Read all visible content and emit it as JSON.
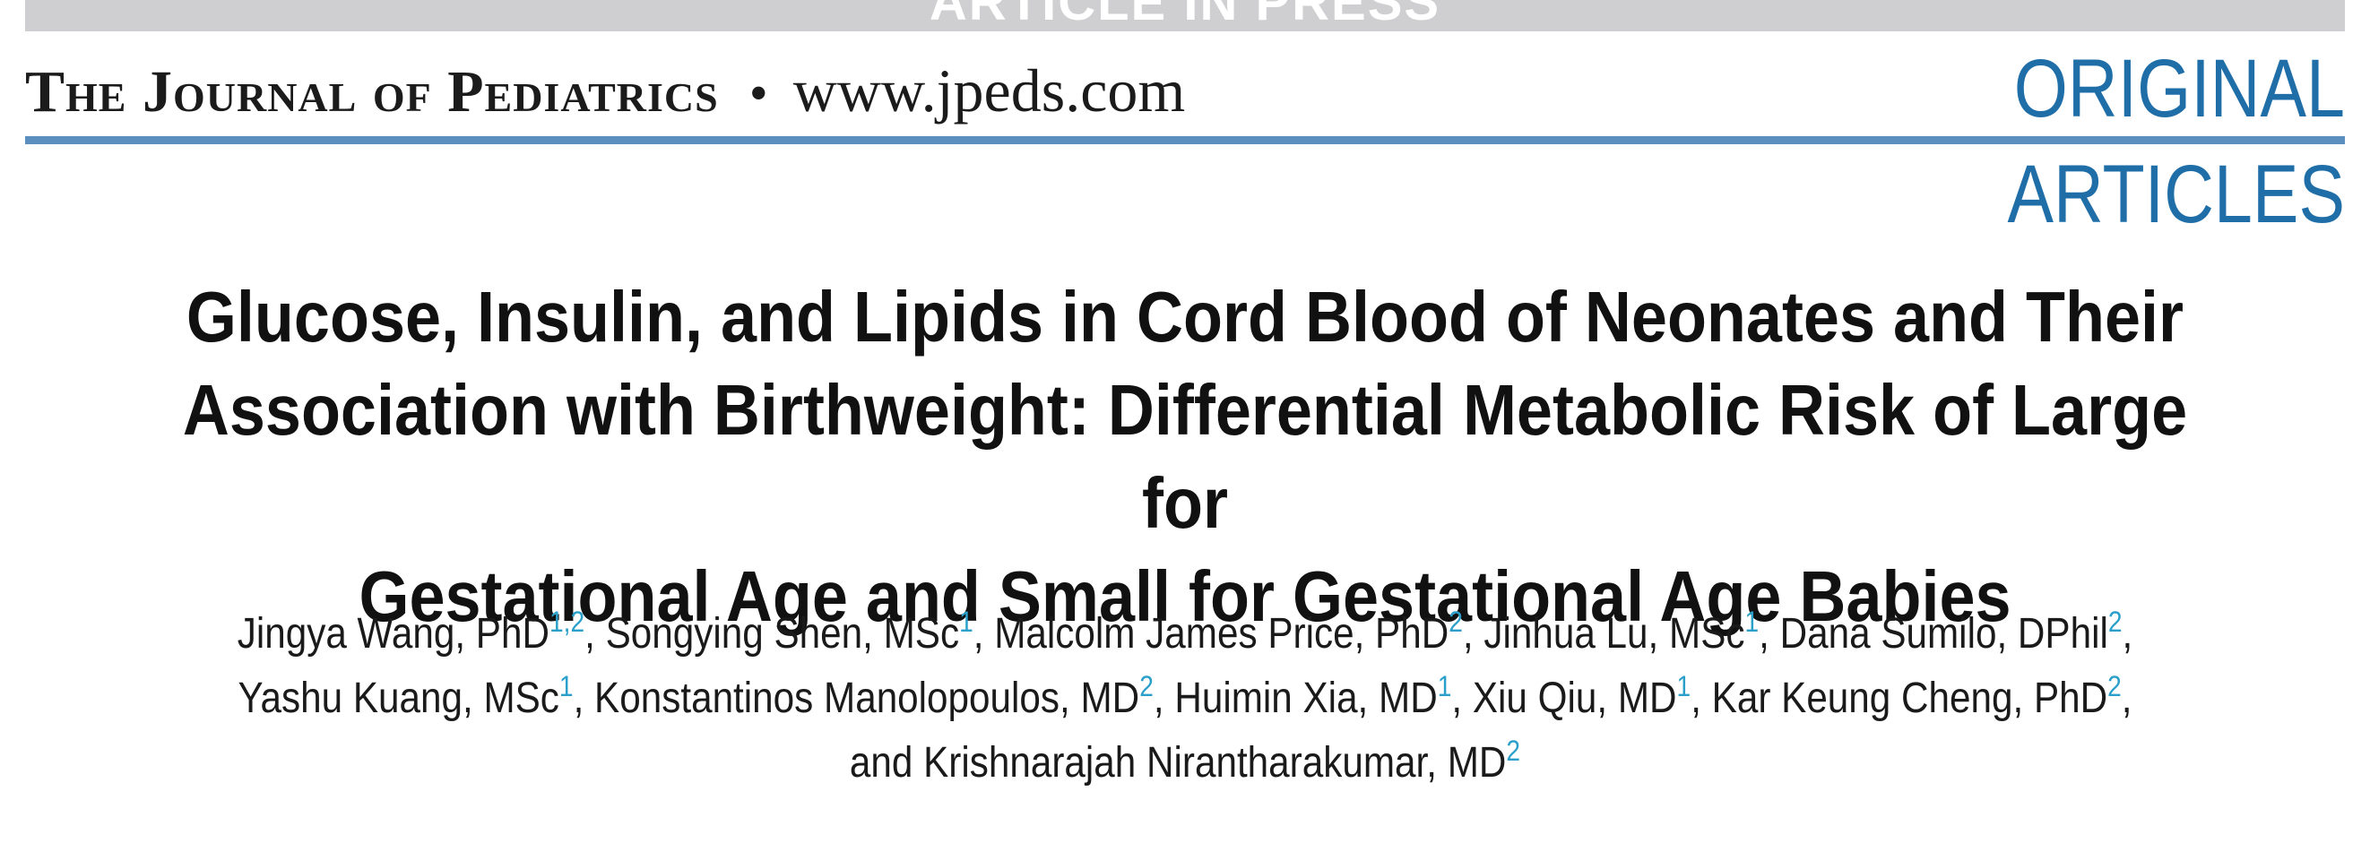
{
  "header": {
    "press_banner": "ARTICLE IN PRESS",
    "journal_name": "The Journal of Pediatrics",
    "separator": "•",
    "url": "www.jpeds.com",
    "section_line1": "ORIGINAL",
    "section_line2": "ARTICLES"
  },
  "article": {
    "title_line1": "Glucose, Insulin, and Lipids in Cord Blood of Neonates and Their",
    "title_line2": "Association with Birthweight: Differential Metabolic Risk of Large for",
    "title_line3": "Gestational Age and Small for Gestational Age Babies",
    "authors": [
      {
        "name": "Jingya Wang, PhD",
        "aff": "1,2",
        "after": ", "
      },
      {
        "name": "Songying Shen, MSc",
        "aff": "1",
        "after": ", "
      },
      {
        "name": "Malcolm James Price, PhD",
        "aff": "2",
        "after": ", "
      },
      {
        "name": "Jinhua Lu, MSc",
        "aff": "1",
        "after": ", "
      },
      {
        "name": "Dana Sumilo, DPhil",
        "aff": "2",
        "after": ","
      },
      {
        "name": "Yashu Kuang, MSc",
        "aff": "1",
        "after": ", "
      },
      {
        "name": "Konstantinos Manolopoulos, MD",
        "aff": "2",
        "after": ", "
      },
      {
        "name": "Huimin Xia, MD",
        "aff": "1",
        "after": ", "
      },
      {
        "name": "Xiu Qiu, MD",
        "aff": "1",
        "after": ", "
      },
      {
        "name": "Kar Keung Cheng, PhD",
        "aff": "2",
        "after": ","
      },
      {
        "name": "and Krishnarajah Nirantharakumar, MD",
        "aff": "2",
        "after": ""
      }
    ]
  },
  "colors": {
    "accent_blue": "#1f6ea8",
    "rule_blue": "#5b8fc0",
    "affiliation_blue": "#2a9fc9",
    "banner_gray": "#cfcfd1"
  }
}
